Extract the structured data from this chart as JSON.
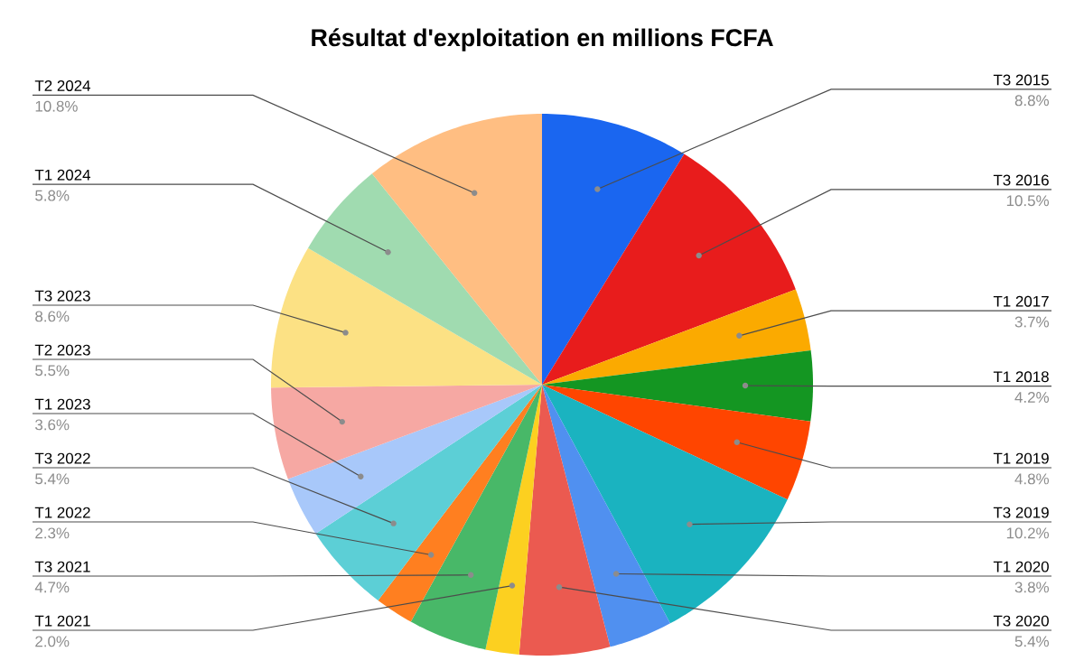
{
  "chart_data": {
    "type": "pie",
    "title": "Résultat d'exploitation en millions FCFA",
    "categories": [
      "T3 2015",
      "T3 2016",
      "T1 2017",
      "T1 2018",
      "T1 2019",
      "T3 2019",
      "T1 2020",
      "T3 2020",
      "T1 2021",
      "T3 2021",
      "T1 2022",
      "T3 2022",
      "T1 2023",
      "T2 2023",
      "T3 2023",
      "T1 2024",
      "T2 2024"
    ],
    "values": [
      8.8,
      10.5,
      3.7,
      4.2,
      4.8,
      10.2,
      3.8,
      5.4,
      2.0,
      4.7,
      2.3,
      5.4,
      3.6,
      5.5,
      8.6,
      5.8,
      10.8
    ],
    "value_labels": [
      "8.8%",
      "10.5%",
      "3.7%",
      "4.2%",
      "4.8%",
      "10.2%",
      "3.8%",
      "5.4%",
      "2.0%",
      "4.7%",
      "2.3%",
      "5.4%",
      "3.6%",
      "5.5%",
      "8.6%",
      "5.8%",
      "10.8%"
    ],
    "colors": [
      "#1a66f0",
      "#e81c1c",
      "#fbaa00",
      "#149622",
      "#ff4500",
      "#1ab3c0",
      "#5090f0",
      "#eb5a50",
      "#fcd020",
      "#48b868",
      "#ff7f20",
      "#5ccfd6",
      "#a8c8fa",
      "#f6a8a3",
      "#fce184",
      "#a0dbb0",
      "#ffbe82"
    ]
  }
}
